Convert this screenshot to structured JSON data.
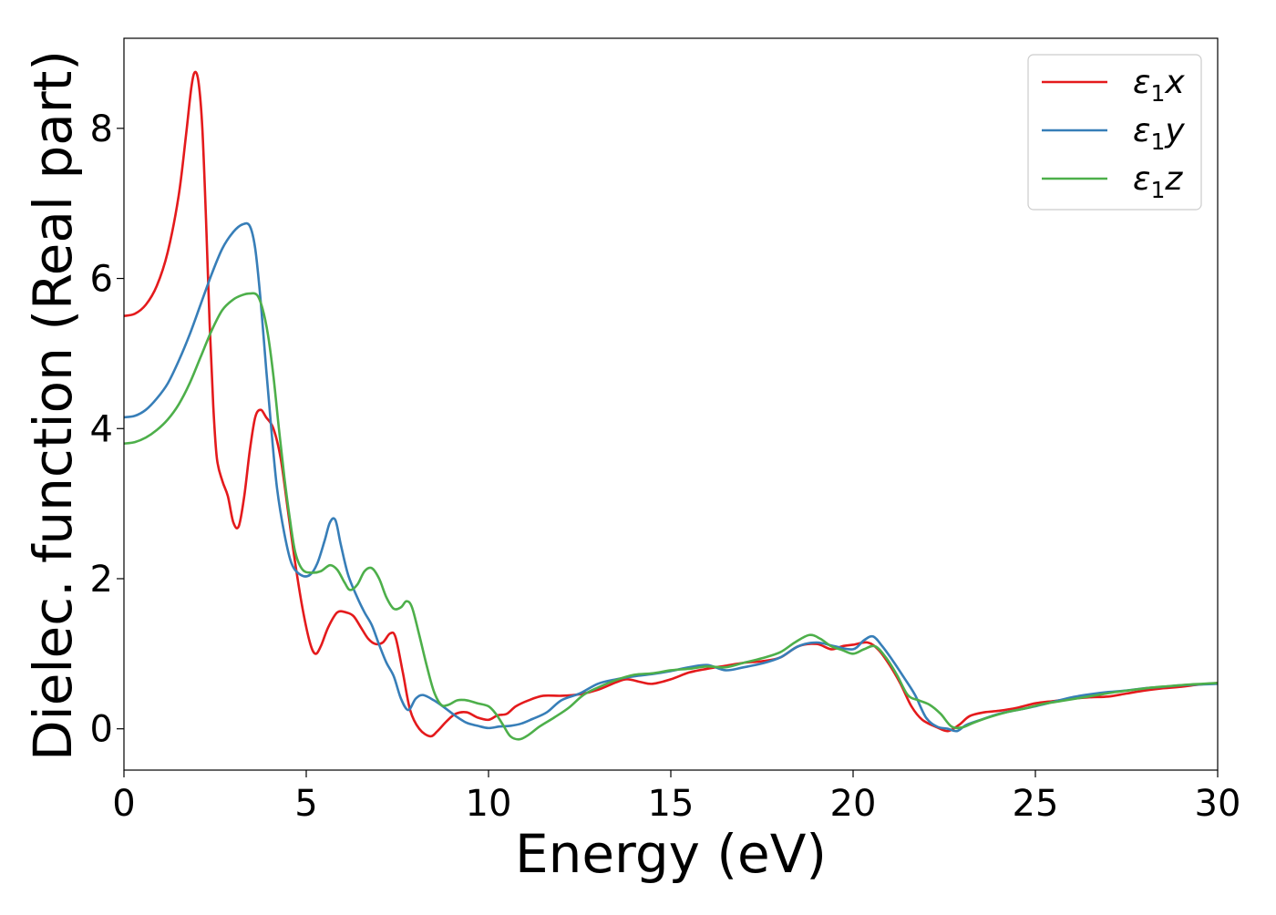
{
  "chart_data": {
    "type": "line",
    "xlabel": "Energy (eV)",
    "ylabel": "Dielec. function (Real part)",
    "xlim": [
      0,
      30
    ],
    "ylim": [
      -0.55,
      9.2
    ],
    "xticks": [
      0,
      5,
      10,
      15,
      20,
      25,
      30
    ],
    "xtick_labels": [
      "0",
      "5",
      "10",
      "15",
      "20",
      "25",
      "30"
    ],
    "yticks": [
      0,
      2,
      4,
      6,
      8
    ],
    "ytick_labels": [
      "0",
      "2",
      "4",
      "6",
      "8"
    ],
    "grid": false,
    "legend_position": "top-right",
    "series": [
      {
        "name": "ε1x",
        "legend_symbol": "ε",
        "legend_sub": "1",
        "legend_var": "x",
        "color": "#e41a1c",
        "points": [
          [
            0.0,
            5.5
          ],
          [
            0.3,
            5.53
          ],
          [
            0.6,
            5.65
          ],
          [
            0.9,
            5.9
          ],
          [
            1.2,
            6.35
          ],
          [
            1.5,
            7.1
          ],
          [
            1.7,
            7.9
          ],
          [
            1.85,
            8.55
          ],
          [
            1.95,
            8.75
          ],
          [
            2.05,
            8.6
          ],
          [
            2.15,
            8.0
          ],
          [
            2.25,
            6.8
          ],
          [
            2.35,
            5.4
          ],
          [
            2.45,
            4.3
          ],
          [
            2.55,
            3.6
          ],
          [
            2.7,
            3.3
          ],
          [
            2.85,
            3.1
          ],
          [
            3.0,
            2.75
          ],
          [
            3.15,
            2.7
          ],
          [
            3.3,
            3.1
          ],
          [
            3.45,
            3.7
          ],
          [
            3.6,
            4.15
          ],
          [
            3.75,
            4.25
          ],
          [
            3.9,
            4.15
          ],
          [
            4.1,
            4.0
          ],
          [
            4.3,
            3.6
          ],
          [
            4.5,
            2.9
          ],
          [
            4.7,
            2.2
          ],
          [
            4.9,
            1.6
          ],
          [
            5.1,
            1.15
          ],
          [
            5.25,
            1.0
          ],
          [
            5.4,
            1.1
          ],
          [
            5.6,
            1.35
          ],
          [
            5.85,
            1.55
          ],
          [
            6.1,
            1.55
          ],
          [
            6.3,
            1.5
          ],
          [
            6.5,
            1.35
          ],
          [
            6.7,
            1.2
          ],
          [
            6.9,
            1.13
          ],
          [
            7.1,
            1.15
          ],
          [
            7.3,
            1.27
          ],
          [
            7.45,
            1.22
          ],
          [
            7.65,
            0.75
          ],
          [
            7.85,
            0.25
          ],
          [
            8.1,
            0.0
          ],
          [
            8.4,
            -0.1
          ],
          [
            8.6,
            -0.03
          ],
          [
            8.85,
            0.1
          ],
          [
            9.1,
            0.2
          ],
          [
            9.4,
            0.22
          ],
          [
            9.7,
            0.15
          ],
          [
            10.0,
            0.12
          ],
          [
            10.25,
            0.18
          ],
          [
            10.5,
            0.2
          ],
          [
            10.75,
            0.3
          ],
          [
            11.1,
            0.38
          ],
          [
            11.5,
            0.44
          ],
          [
            12.0,
            0.44
          ],
          [
            12.5,
            0.46
          ],
          [
            13.0,
            0.52
          ],
          [
            13.5,
            0.62
          ],
          [
            13.8,
            0.66
          ],
          [
            14.2,
            0.62
          ],
          [
            14.5,
            0.6
          ],
          [
            15.0,
            0.66
          ],
          [
            15.5,
            0.75
          ],
          [
            16.0,
            0.8
          ],
          [
            16.5,
            0.84
          ],
          [
            17.0,
            0.88
          ],
          [
            17.5,
            0.9
          ],
          [
            18.0,
            0.95
          ],
          [
            18.5,
            1.1
          ],
          [
            19.0,
            1.13
          ],
          [
            19.4,
            1.06
          ],
          [
            19.7,
            1.1
          ],
          [
            20.0,
            1.12
          ],
          [
            20.4,
            1.15
          ],
          [
            20.7,
            1.05
          ],
          [
            21.0,
            0.85
          ],
          [
            21.3,
            0.6
          ],
          [
            21.6,
            0.3
          ],
          [
            21.9,
            0.12
          ],
          [
            22.3,
            0.02
          ],
          [
            22.6,
            -0.03
          ],
          [
            22.9,
            0.05
          ],
          [
            23.2,
            0.17
          ],
          [
            23.6,
            0.22
          ],
          [
            24.0,
            0.24
          ],
          [
            24.5,
            0.28
          ],
          [
            25.0,
            0.34
          ],
          [
            25.5,
            0.37
          ],
          [
            26.0,
            0.4
          ],
          [
            26.5,
            0.42
          ],
          [
            27.0,
            0.43
          ],
          [
            27.5,
            0.47
          ],
          [
            28.0,
            0.51
          ],
          [
            28.5,
            0.54
          ],
          [
            29.0,
            0.56
          ],
          [
            29.5,
            0.59
          ],
          [
            30.0,
            0.61
          ]
        ]
      },
      {
        "name": "ε1y",
        "legend_symbol": "ε",
        "legend_sub": "1",
        "legend_var": "y",
        "color": "#377eb8",
        "points": [
          [
            0.0,
            4.15
          ],
          [
            0.3,
            4.17
          ],
          [
            0.6,
            4.25
          ],
          [
            0.9,
            4.4
          ],
          [
            1.2,
            4.6
          ],
          [
            1.5,
            4.9
          ],
          [
            1.8,
            5.25
          ],
          [
            2.1,
            5.65
          ],
          [
            2.4,
            6.05
          ],
          [
            2.7,
            6.4
          ],
          [
            3.0,
            6.62
          ],
          [
            3.25,
            6.72
          ],
          [
            3.45,
            6.7
          ],
          [
            3.6,
            6.4
          ],
          [
            3.75,
            5.7
          ],
          [
            3.9,
            4.8
          ],
          [
            4.05,
            3.95
          ],
          [
            4.2,
            3.2
          ],
          [
            4.4,
            2.6
          ],
          [
            4.6,
            2.2
          ],
          [
            4.85,
            2.05
          ],
          [
            5.1,
            2.05
          ],
          [
            5.3,
            2.2
          ],
          [
            5.5,
            2.5
          ],
          [
            5.65,
            2.75
          ],
          [
            5.8,
            2.78
          ],
          [
            5.95,
            2.45
          ],
          [
            6.15,
            2.05
          ],
          [
            6.4,
            1.75
          ],
          [
            6.6,
            1.55
          ],
          [
            6.8,
            1.38
          ],
          [
            7.0,
            1.12
          ],
          [
            7.2,
            0.88
          ],
          [
            7.4,
            0.7
          ],
          [
            7.6,
            0.4
          ],
          [
            7.8,
            0.25
          ],
          [
            8.0,
            0.4
          ],
          [
            8.2,
            0.45
          ],
          [
            8.5,
            0.38
          ],
          [
            8.8,
            0.28
          ],
          [
            9.1,
            0.17
          ],
          [
            9.4,
            0.08
          ],
          [
            9.7,
            0.04
          ],
          [
            10.0,
            0.01
          ],
          [
            10.3,
            0.03
          ],
          [
            10.6,
            0.04
          ],
          [
            10.9,
            0.07
          ],
          [
            11.2,
            0.13
          ],
          [
            11.6,
            0.22
          ],
          [
            12.0,
            0.38
          ],
          [
            12.5,
            0.47
          ],
          [
            13.0,
            0.6
          ],
          [
            13.5,
            0.66
          ],
          [
            14.0,
            0.7
          ],
          [
            14.5,
            0.73
          ],
          [
            15.0,
            0.77
          ],
          [
            15.5,
            0.82
          ],
          [
            16.0,
            0.85
          ],
          [
            16.5,
            0.78
          ],
          [
            17.0,
            0.82
          ],
          [
            17.5,
            0.87
          ],
          [
            18.0,
            0.95
          ],
          [
            18.5,
            1.1
          ],
          [
            19.0,
            1.15
          ],
          [
            19.5,
            1.1
          ],
          [
            20.0,
            1.06
          ],
          [
            20.3,
            1.18
          ],
          [
            20.55,
            1.23
          ],
          [
            20.8,
            1.1
          ],
          [
            21.1,
            0.9
          ],
          [
            21.4,
            0.68
          ],
          [
            21.7,
            0.45
          ],
          [
            22.0,
            0.15
          ],
          [
            22.3,
            0.03
          ],
          [
            22.6,
            0.0
          ],
          [
            22.85,
            -0.03
          ],
          [
            23.1,
            0.05
          ],
          [
            23.5,
            0.12
          ],
          [
            24.0,
            0.2
          ],
          [
            24.5,
            0.25
          ],
          [
            25.0,
            0.3
          ],
          [
            25.5,
            0.36
          ],
          [
            26.0,
            0.42
          ],
          [
            26.5,
            0.46
          ],
          [
            27.0,
            0.49
          ],
          [
            27.5,
            0.51
          ],
          [
            28.0,
            0.54
          ],
          [
            28.5,
            0.56
          ],
          [
            29.0,
            0.58
          ],
          [
            29.5,
            0.59
          ],
          [
            30.0,
            0.6
          ]
        ]
      },
      {
        "name": "ε1z",
        "legend_symbol": "ε",
        "legend_sub": "1",
        "legend_var": "z",
        "color": "#4daf4a",
        "points": [
          [
            0.0,
            3.8
          ],
          [
            0.3,
            3.82
          ],
          [
            0.6,
            3.88
          ],
          [
            0.9,
            3.98
          ],
          [
            1.2,
            4.12
          ],
          [
            1.5,
            4.32
          ],
          [
            1.8,
            4.6
          ],
          [
            2.1,
            4.95
          ],
          [
            2.4,
            5.3
          ],
          [
            2.7,
            5.58
          ],
          [
            3.0,
            5.72
          ],
          [
            3.25,
            5.78
          ],
          [
            3.45,
            5.8
          ],
          [
            3.65,
            5.78
          ],
          [
            3.8,
            5.6
          ],
          [
            3.95,
            5.25
          ],
          [
            4.1,
            4.7
          ],
          [
            4.25,
            4.0
          ],
          [
            4.4,
            3.35
          ],
          [
            4.55,
            2.8
          ],
          [
            4.7,
            2.35
          ],
          [
            4.9,
            2.12
          ],
          [
            5.15,
            2.08
          ],
          [
            5.4,
            2.1
          ],
          [
            5.65,
            2.18
          ],
          [
            5.85,
            2.12
          ],
          [
            6.05,
            1.95
          ],
          [
            6.2,
            1.85
          ],
          [
            6.4,
            1.92
          ],
          [
            6.6,
            2.1
          ],
          [
            6.8,
            2.14
          ],
          [
            7.0,
            2.0
          ],
          [
            7.2,
            1.75
          ],
          [
            7.4,
            1.6
          ],
          [
            7.6,
            1.62
          ],
          [
            7.75,
            1.7
          ],
          [
            7.9,
            1.62
          ],
          [
            8.1,
            1.25
          ],
          [
            8.3,
            0.85
          ],
          [
            8.5,
            0.5
          ],
          [
            8.7,
            0.32
          ],
          [
            8.9,
            0.32
          ],
          [
            9.15,
            0.38
          ],
          [
            9.4,
            0.38
          ],
          [
            9.7,
            0.34
          ],
          [
            10.0,
            0.3
          ],
          [
            10.2,
            0.2
          ],
          [
            10.4,
            0.05
          ],
          [
            10.6,
            -0.1
          ],
          [
            10.85,
            -0.14
          ],
          [
            11.1,
            -0.08
          ],
          [
            11.4,
            0.03
          ],
          [
            11.8,
            0.15
          ],
          [
            12.2,
            0.28
          ],
          [
            12.6,
            0.45
          ],
          [
            13.0,
            0.55
          ],
          [
            13.5,
            0.65
          ],
          [
            14.0,
            0.72
          ],
          [
            14.5,
            0.74
          ],
          [
            15.0,
            0.78
          ],
          [
            15.5,
            0.8
          ],
          [
            16.0,
            0.83
          ],
          [
            16.5,
            0.82
          ],
          [
            17.0,
            0.88
          ],
          [
            17.5,
            0.94
          ],
          [
            18.0,
            1.02
          ],
          [
            18.4,
            1.15
          ],
          [
            18.8,
            1.25
          ],
          [
            19.1,
            1.2
          ],
          [
            19.4,
            1.1
          ],
          [
            19.7,
            1.05
          ],
          [
            20.0,
            1.0
          ],
          [
            20.3,
            1.06
          ],
          [
            20.6,
            1.1
          ],
          [
            20.9,
            0.95
          ],
          [
            21.2,
            0.72
          ],
          [
            21.5,
            0.45
          ],
          [
            21.8,
            0.38
          ],
          [
            22.1,
            0.32
          ],
          [
            22.4,
            0.2
          ],
          [
            22.7,
            0.03
          ],
          [
            23.0,
            0.02
          ],
          [
            23.3,
            0.08
          ],
          [
            23.7,
            0.15
          ],
          [
            24.2,
            0.22
          ],
          [
            24.7,
            0.27
          ],
          [
            25.2,
            0.33
          ],
          [
            25.7,
            0.37
          ],
          [
            26.2,
            0.41
          ],
          [
            26.7,
            0.45
          ],
          [
            27.2,
            0.49
          ],
          [
            27.7,
            0.52
          ],
          [
            28.2,
            0.55
          ],
          [
            28.7,
            0.57
          ],
          [
            29.2,
            0.59
          ],
          [
            29.6,
            0.6
          ],
          [
            30.0,
            0.61
          ]
        ]
      }
    ]
  }
}
